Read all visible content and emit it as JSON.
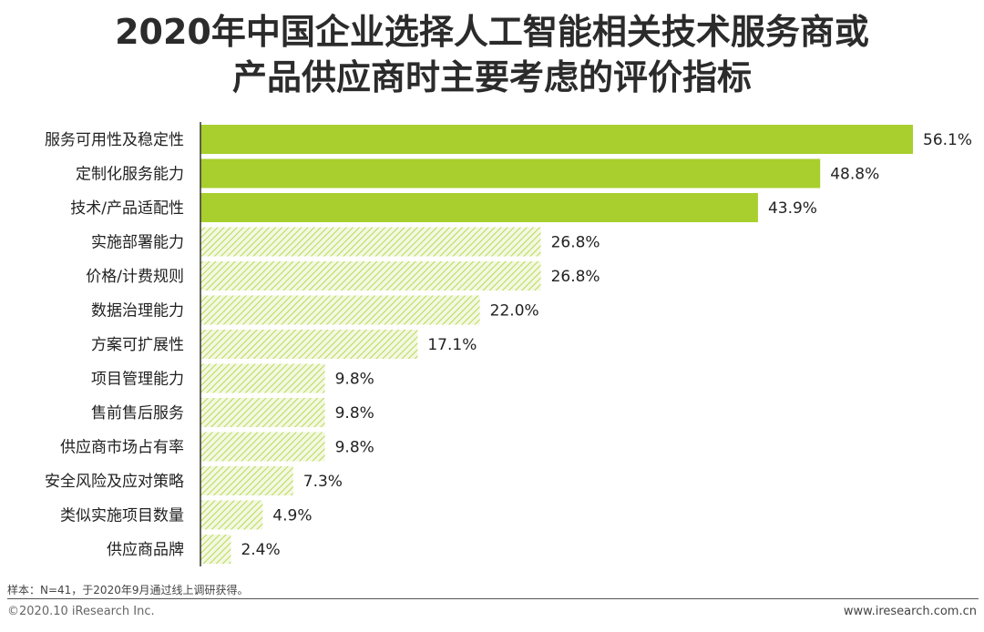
{
  "title": {
    "line1": "2020年中国企业选择人工智能相关技术服务商或",
    "line2": "产品供应商时主要考虑的评价指标"
  },
  "chart_data": {
    "type": "bar",
    "orientation": "horizontal",
    "categories": [
      "服务可用性及稳定性",
      "定制化服务能力",
      "技术/产品适配性",
      "实施部署能力",
      "价格/计费规则",
      "数据治理能力",
      "方案可扩展性",
      "项目管理能力",
      "售前售后服务",
      "供应商市场占有率",
      "安全风险及应对策略",
      "类似实施项目数量",
      "供应商品牌"
    ],
    "values": [
      56.1,
      48.8,
      43.9,
      26.8,
      26.8,
      22.0,
      17.1,
      9.8,
      9.8,
      9.8,
      7.3,
      4.9,
      2.4
    ],
    "value_labels": [
      "56.1%",
      "48.8%",
      "43.9%",
      "26.8%",
      "26.8%",
      "22.0%",
      "17.1%",
      "9.8%",
      "9.8%",
      "9.8%",
      "7.3%",
      "4.9%",
      "2.4%"
    ],
    "highlighted_count": 3,
    "colors": {
      "solid": "#a8cf2d",
      "hatch": "#b9da55",
      "hatch_bg": "#f3f8e2",
      "axis": "#333333"
    },
    "xlim": [
      0,
      56.1
    ],
    "grid": false
  },
  "footer": {
    "note": "样本：N=41，于2020年9月通过线上调研获得。",
    "copyright": "©2020.10 iResearch Inc.",
    "website": "www.iresearch.com.cn"
  }
}
